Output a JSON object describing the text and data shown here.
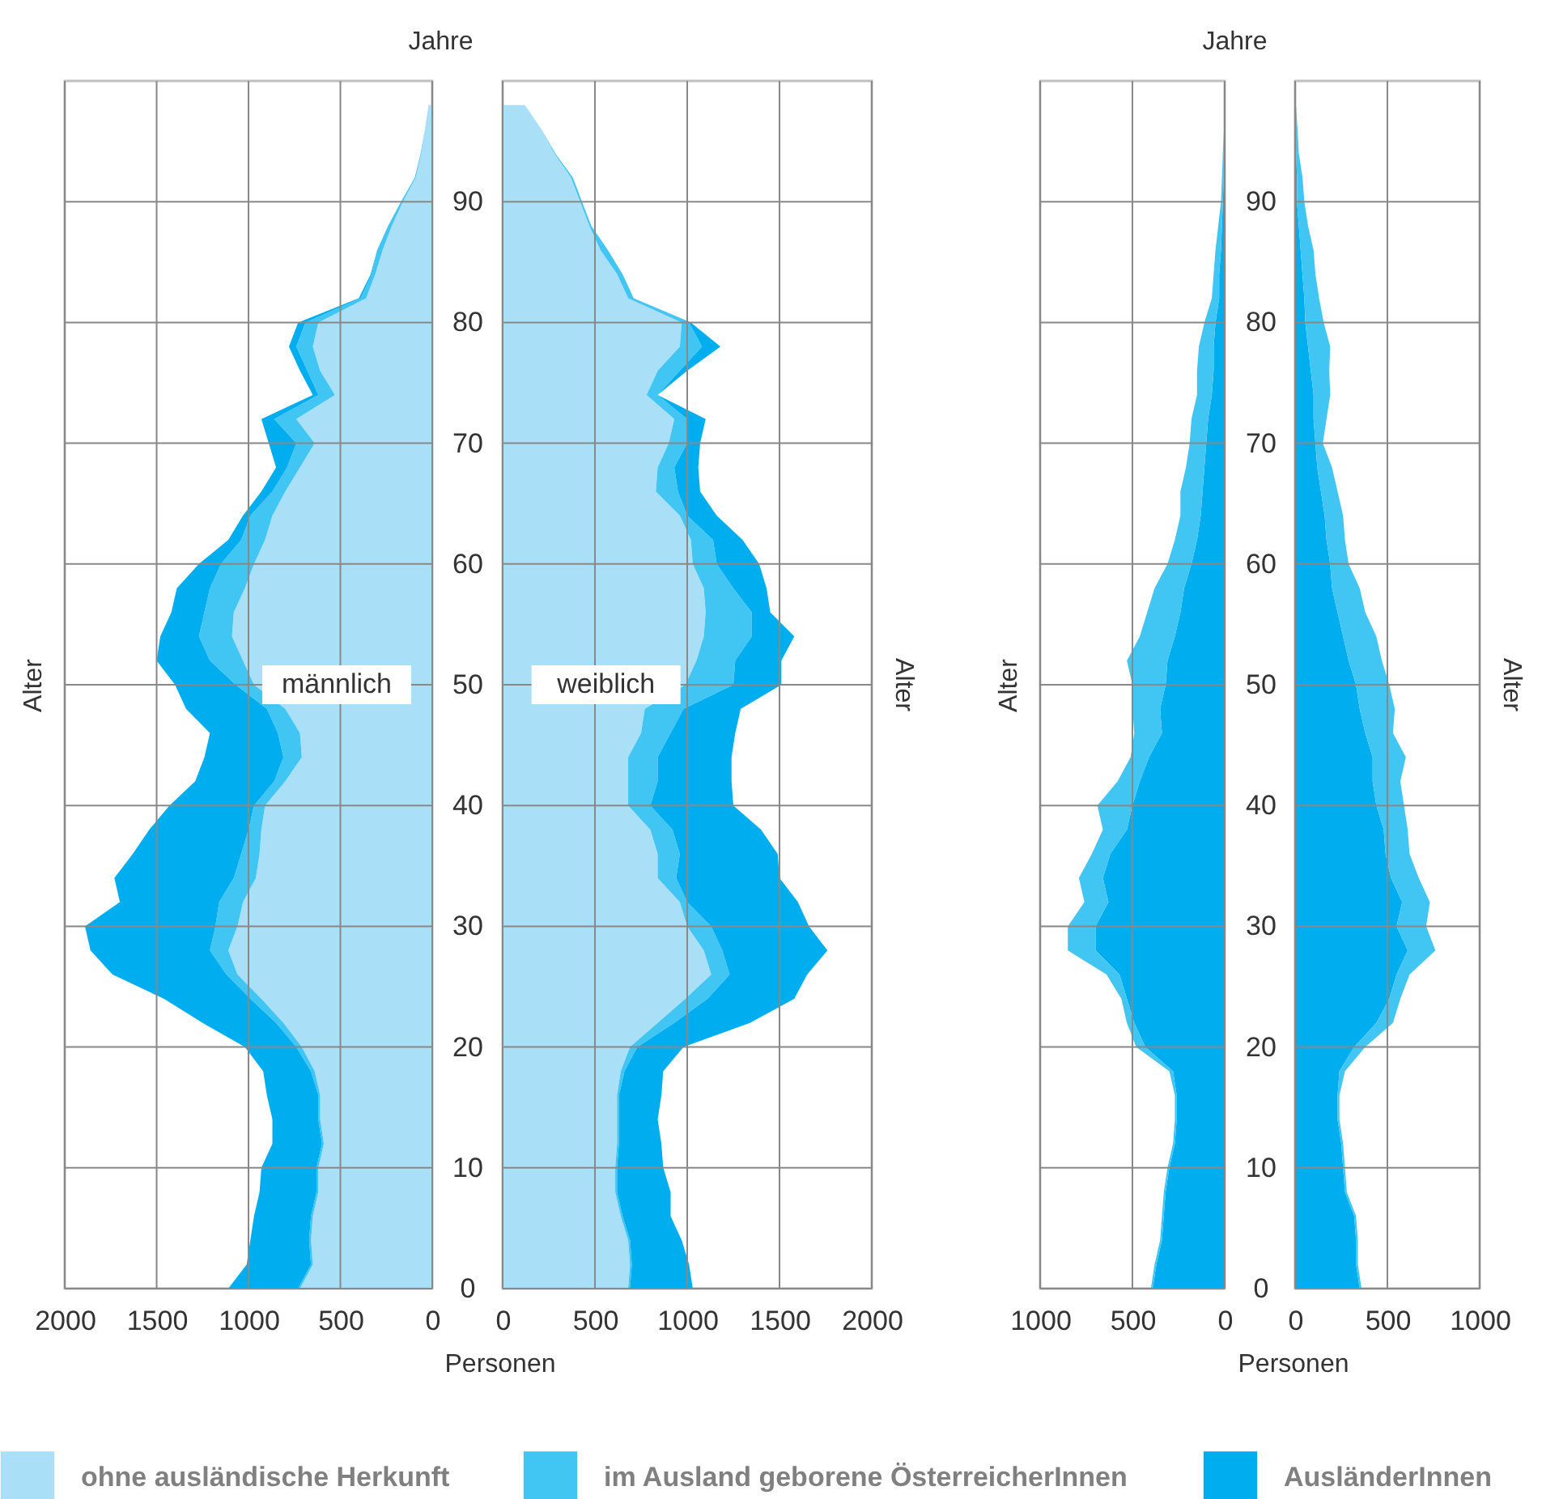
{
  "chart_data": [
    {
      "type": "area",
      "orientation": "horizontal",
      "stacked": true,
      "ylabel": "Alter",
      "annotations": [
        "männlich"
      ],
      "legend": "bottom",
      "grid": true,
      "tick_labels": "x",
      "x": [
        0,
        2,
        4,
        6,
        8,
        10,
        12,
        14,
        16,
        18,
        20,
        22,
        24,
        26,
        28,
        30,
        32,
        34,
        36,
        38,
        40,
        42,
        44,
        46,
        48,
        50,
        52,
        54,
        56,
        58,
        60,
        62,
        64,
        66,
        68,
        70,
        72,
        74,
        76,
        78,
        80,
        82,
        84,
        86,
        88,
        90,
        92,
        94,
        96,
        98
      ],
      "xlim": [
        2000,
        0
      ],
      "xticks": [
        2000,
        1500,
        1000,
        500,
        0
      ],
      "ylim": [
        0,
        100
      ],
      "yticks": [
        0,
        10,
        20,
        30,
        40,
        50,
        60,
        70,
        80,
        90
      ],
      "series": [
        {
          "name": "ohne ausländische Herkunft",
          "color": "#aadff8",
          "values": [
            720,
            650,
            660,
            650,
            620,
            620,
            590,
            610,
            610,
            640,
            710,
            810,
            930,
            1060,
            1110,
            1060,
            1030,
            960,
            940,
            930,
            910,
            800,
            710,
            720,
            800,
            970,
            1030,
            1090,
            1080,
            1020,
            970,
            910,
            870,
            800,
            720,
            640,
            740,
            530,
            610,
            650,
            620,
            360,
            310,
            270,
            220,
            160,
            90,
            60,
            40,
            20
          ]
        },
        {
          "name": "im Ausland geborene ÖsterreicherInnen",
          "color": "#41c5f3",
          "values": [
            10,
            10,
            10,
            10,
            10,
            10,
            10,
            10,
            10,
            20,
            30,
            40,
            60,
            60,
            100,
            120,
            130,
            120,
            100,
            70,
            60,
            60,
            100,
            120,
            100,
            100,
            180,
            180,
            160,
            190,
            180,
            130,
            120,
            70,
            70,
            100,
            120,
            90,
            70,
            90,
            70,
            30,
            20,
            30,
            20,
            10,
            5,
            3,
            0,
            0
          ]
        },
        {
          "name": "AusländerInnen",
          "color": "#00aeef",
          "values": [
            380,
            350,
            320,
            310,
            310,
            300,
            270,
            250,
            280,
            260,
            280,
            400,
            470,
            620,
            650,
            710,
            540,
            650,
            590,
            540,
            460,
            430,
            430,
            370,
            440,
            330,
            290,
            210,
            180,
            180,
            120,
            70,
            40,
            60,
            60,
            150,
            70,
            30,
            40,
            40,
            40,
            10,
            5,
            0,
            0,
            0,
            0,
            0,
            0,
            0
          ]
        }
      ]
    },
    {
      "type": "area",
      "orientation": "horizontal",
      "stacked": true,
      "title": "Jahre",
      "xlabel": "Personen",
      "ylabel": "Alter",
      "annotations": [
        "weiblich"
      ],
      "grid": true,
      "x": [
        0,
        2,
        4,
        6,
        8,
        10,
        12,
        14,
        16,
        18,
        20,
        22,
        24,
        26,
        28,
        30,
        32,
        34,
        36,
        38,
        40,
        42,
        44,
        46,
        48,
        50,
        52,
        54,
        56,
        58,
        60,
        62,
        64,
        66,
        68,
        70,
        72,
        74,
        76,
        78,
        80,
        82,
        84,
        86,
        88,
        90,
        92,
        94,
        96,
        98
      ],
      "xlim": [
        0,
        2000
      ],
      "xticks": [
        0,
        500,
        1000,
        1500,
        2000
      ],
      "ylim": [
        0,
        100
      ],
      "yticks": [
        0,
        10,
        20,
        30,
        40,
        50,
        60,
        70,
        80,
        90
      ],
      "series": [
        {
          "name": "ohne ausländische Herkunft",
          "color": "#aadff8",
          "values": [
            680,
            690,
            680,
            640,
            610,
            610,
            620,
            620,
            620,
            640,
            690,
            840,
            990,
            1130,
            1090,
            1000,
            960,
            840,
            840,
            800,
            680,
            680,
            680,
            750,
            770,
            990,
            1050,
            1090,
            1100,
            1090,
            1030,
            1020,
            960,
            830,
            840,
            900,
            930,
            780,
            840,
            960,
            970,
            680,
            620,
            530,
            470,
            420,
            370,
            280,
            210,
            120
          ]
        },
        {
          "name": "im Ausland geborene ÖsterreicherInnen",
          "color": "#41c5f3",
          "values": [
            10,
            10,
            10,
            10,
            10,
            10,
            10,
            10,
            10,
            20,
            40,
            90,
            120,
            100,
            100,
            130,
            40,
            100,
            120,
            120,
            120,
            160,
            160,
            160,
            210,
            260,
            210,
            260,
            250,
            160,
            130,
            120,
            40,
            120,
            90,
            100,
            70,
            60,
            120,
            120,
            40,
            30,
            30,
            40,
            10,
            10,
            10,
            5,
            0,
            0
          ]
        },
        {
          "name": "AusländerInnen",
          "color": "#00aeef",
          "values": [
            340,
            310,
            280,
            260,
            290,
            250,
            230,
            210,
            230,
            210,
            250,
            410,
            470,
            420,
            570,
            530,
            600,
            560,
            530,
            480,
            450,
            400,
            400,
            350,
            310,
            260,
            250,
            230,
            100,
            180,
            230,
            160,
            160,
            120,
            130,
            70,
            100,
            0,
            40,
            100,
            10,
            0,
            0,
            0,
            0,
            0,
            0,
            0,
            0,
            0
          ]
        }
      ]
    },
    {
      "type": "area",
      "orientation": "horizontal",
      "stacked": true,
      "ylabel": "Alter",
      "grid": true,
      "tick_labels": "x",
      "x": [
        0,
        2,
        4,
        6,
        8,
        10,
        12,
        14,
        16,
        18,
        20,
        22,
        24,
        26,
        28,
        30,
        32,
        34,
        36,
        38,
        40,
        42,
        44,
        46,
        48,
        50,
        52,
        54,
        56,
        58,
        60,
        62,
        64,
        66,
        68,
        70,
        72,
        74,
        76,
        78,
        80,
        82,
        84,
        86,
        88,
        90,
        92,
        94,
        96,
        98
      ],
      "xlim": [
        1000,
        0
      ],
      "xticks": [
        1000,
        500,
        0
      ],
      "ylim": [
        0,
        100
      ],
      "yticks": [
        0,
        10,
        20,
        30,
        40,
        50,
        60,
        70,
        80,
        90
      ],
      "series": [
        {
          "name": "AusländerInnen",
          "color": "#00aeef",
          "values": [
            390,
            370,
            340,
            330,
            320,
            300,
            270,
            260,
            260,
            280,
            430,
            490,
            530,
            570,
            700,
            700,
            630,
            660,
            620,
            530,
            500,
            460,
            410,
            340,
            350,
            320,
            310,
            270,
            240,
            220,
            180,
            150,
            130,
            120,
            110,
            100,
            90,
            70,
            60,
            60,
            50,
            30,
            30,
            20,
            15,
            10,
            5,
            5,
            2,
            1
          ]
        },
        {
          "name": "im Ausland geborene ÖsterreicherInnen",
          "color": "#41c5f3",
          "values": [
            10,
            10,
            10,
            10,
            10,
            10,
            10,
            10,
            10,
            20,
            50,
            40,
            30,
            70,
            150,
            150,
            130,
            130,
            100,
            130,
            190,
            120,
            100,
            150,
            150,
            180,
            220,
            190,
            180,
            160,
            130,
            120,
            110,
            120,
            100,
            90,
            90,
            80,
            90,
            80,
            60,
            40,
            30,
            30,
            20,
            10,
            10,
            5,
            2,
            1
          ]
        }
      ]
    },
    {
      "type": "area",
      "orientation": "horizontal",
      "stacked": true,
      "title": "Jahre",
      "xlabel": "Personen",
      "ylabel": "Alter",
      "grid": true,
      "x": [
        0,
        2,
        4,
        6,
        8,
        10,
        12,
        14,
        16,
        18,
        20,
        22,
        24,
        26,
        28,
        30,
        32,
        34,
        36,
        38,
        40,
        42,
        44,
        46,
        48,
        50,
        52,
        54,
        56,
        58,
        60,
        62,
        64,
        66,
        68,
        70,
        72,
        74,
        76,
        78,
        80,
        82,
        84,
        86,
        88,
        90,
        92,
        94,
        96,
        98
      ],
      "xlim": [
        0,
        1000
      ],
      "xticks": [
        0,
        500,
        1000
      ],
      "ylim": [
        0,
        100
      ],
      "yticks": [
        0,
        10,
        20,
        30,
        40,
        50,
        60,
        70,
        80,
        90
      ],
      "series": [
        {
          "name": "AusländerInnen",
          "color": "#00aeef",
          "values": [
            350,
            330,
            330,
            320,
            270,
            260,
            250,
            230,
            230,
            240,
            320,
            440,
            510,
            550,
            610,
            550,
            580,
            520,
            490,
            480,
            440,
            420,
            420,
            380,
            350,
            330,
            290,
            260,
            230,
            200,
            190,
            170,
            160,
            140,
            120,
            110,
            100,
            100,
            85,
            70,
            55,
            50,
            40,
            30,
            20,
            10,
            10,
            5,
            3,
            0
          ]
        },
        {
          "name": "im Ausland geborene ÖsterreicherInnen",
          "color": "#41c5f3",
          "values": [
            10,
            10,
            10,
            10,
            10,
            10,
            10,
            10,
            10,
            30,
            60,
            90,
            60,
            70,
            150,
            160,
            150,
            150,
            130,
            130,
            150,
            150,
            180,
            150,
            190,
            180,
            180,
            180,
            150,
            150,
            100,
            100,
            100,
            90,
            80,
            40,
            70,
            90,
            100,
            120,
            100,
            80,
            70,
            70,
            50,
            40,
            30,
            15,
            10,
            5
          ]
        }
      ]
    }
  ]
}
